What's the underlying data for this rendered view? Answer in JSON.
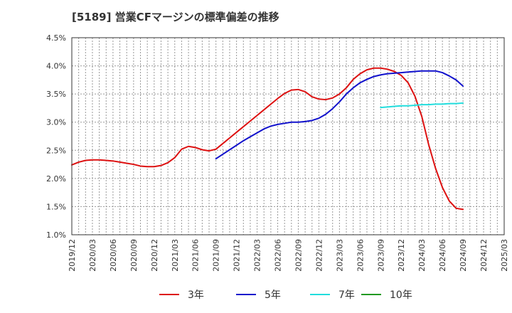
{
  "chart_data": {
    "type": "line",
    "title": "[5189]  営業CFマージンの標準偏差の推移",
    "xlabel": "",
    "ylabel": "",
    "ylim": [
      1.0,
      4.5
    ],
    "y_ticks": [
      "1.0%",
      "1.5%",
      "2.0%",
      "2.5%",
      "3.0%",
      "3.5%",
      "4.0%",
      "4.5%"
    ],
    "x_ticks": [
      "2019/12",
      "2020/03",
      "2020/06",
      "2020/09",
      "2020/12",
      "2021/03",
      "2021/06",
      "2021/09",
      "2021/12",
      "2022/03",
      "2022/06",
      "2022/09",
      "2022/12",
      "2023/03",
      "2023/06",
      "2023/09",
      "2023/12",
      "2024/03",
      "2024/06",
      "2024/09",
      "2024/12",
      "2025/03"
    ],
    "grid": true,
    "legend_position": "bottom",
    "series": [
      {
        "name": "3年",
        "color": "#dd1111",
        "x": [
          "2019/12",
          "2020/01",
          "2020/02",
          "2020/03",
          "2020/04",
          "2020/05",
          "2020/06",
          "2020/07",
          "2020/08",
          "2020/09",
          "2020/10",
          "2020/11",
          "2020/12",
          "2021/01",
          "2021/02",
          "2021/03",
          "2021/04",
          "2021/05",
          "2021/06",
          "2021/07",
          "2021/08",
          "2021/09",
          "2021/10",
          "2021/11",
          "2021/12",
          "2022/01",
          "2022/02",
          "2022/03",
          "2022/04",
          "2022/05",
          "2022/06",
          "2022/07",
          "2022/08",
          "2022/09",
          "2022/10",
          "2022/11",
          "2022/12",
          "2023/01",
          "2023/02",
          "2023/03",
          "2023/04",
          "2023/05",
          "2023/06",
          "2023/07",
          "2023/08",
          "2023/09",
          "2023/10",
          "2023/11",
          "2023/12",
          "2024/01",
          "2024/02",
          "2024/03",
          "2024/04",
          "2024/05",
          "2024/06",
          "2024/07",
          "2024/08",
          "2024/09"
        ],
        "values": [
          2.24,
          2.29,
          2.32,
          2.33,
          2.33,
          2.32,
          2.31,
          2.29,
          2.27,
          2.25,
          2.22,
          2.21,
          2.21,
          2.23,
          2.28,
          2.37,
          2.52,
          2.57,
          2.55,
          2.51,
          2.49,
          2.52,
          2.62,
          2.72,
          2.82,
          2.92,
          3.02,
          3.12,
          3.22,
          3.32,
          3.42,
          3.51,
          3.57,
          3.58,
          3.54,
          3.45,
          3.41,
          3.4,
          3.43,
          3.5,
          3.61,
          3.76,
          3.86,
          3.93,
          3.96,
          3.96,
          3.94,
          3.9,
          3.83,
          3.7,
          3.46,
          3.1,
          2.6,
          2.18,
          1.84,
          1.6,
          1.47,
          1.45
        ]
      },
      {
        "name": "5年",
        "color": "#1111cc",
        "x": [
          "2021/09",
          "2021/10",
          "2021/11",
          "2021/12",
          "2022/01",
          "2022/02",
          "2022/03",
          "2022/04",
          "2022/05",
          "2022/06",
          "2022/07",
          "2022/08",
          "2022/09",
          "2022/10",
          "2022/11",
          "2022/12",
          "2023/01",
          "2023/02",
          "2023/03",
          "2023/04",
          "2023/05",
          "2023/06",
          "2023/07",
          "2023/08",
          "2023/09",
          "2023/10",
          "2023/11",
          "2023/12",
          "2024/01",
          "2024/02",
          "2024/03",
          "2024/04",
          "2024/05",
          "2024/06",
          "2024/07",
          "2024/08",
          "2024/09"
        ],
        "values": [
          2.35,
          2.43,
          2.51,
          2.59,
          2.67,
          2.74,
          2.81,
          2.88,
          2.93,
          2.96,
          2.98,
          3.0,
          3.0,
          3.01,
          3.03,
          3.07,
          3.14,
          3.24,
          3.36,
          3.5,
          3.61,
          3.7,
          3.76,
          3.81,
          3.84,
          3.86,
          3.87,
          3.88,
          3.89,
          3.9,
          3.91,
          3.91,
          3.91,
          3.88,
          3.82,
          3.75,
          3.64
        ]
      },
      {
        "name": "7年",
        "color": "#22dddd",
        "x": [
          "2023/09",
          "2023/10",
          "2023/11",
          "2023/12",
          "2024/01",
          "2024/02",
          "2024/03",
          "2024/04",
          "2024/05",
          "2024/06",
          "2024/07",
          "2024/08",
          "2024/09"
        ],
        "values": [
          3.26,
          3.27,
          3.28,
          3.29,
          3.29,
          3.3,
          3.31,
          3.31,
          3.32,
          3.32,
          3.33,
          3.33,
          3.34
        ]
      },
      {
        "name": "10年",
        "color": "#229922",
        "x": [],
        "values": []
      }
    ]
  }
}
